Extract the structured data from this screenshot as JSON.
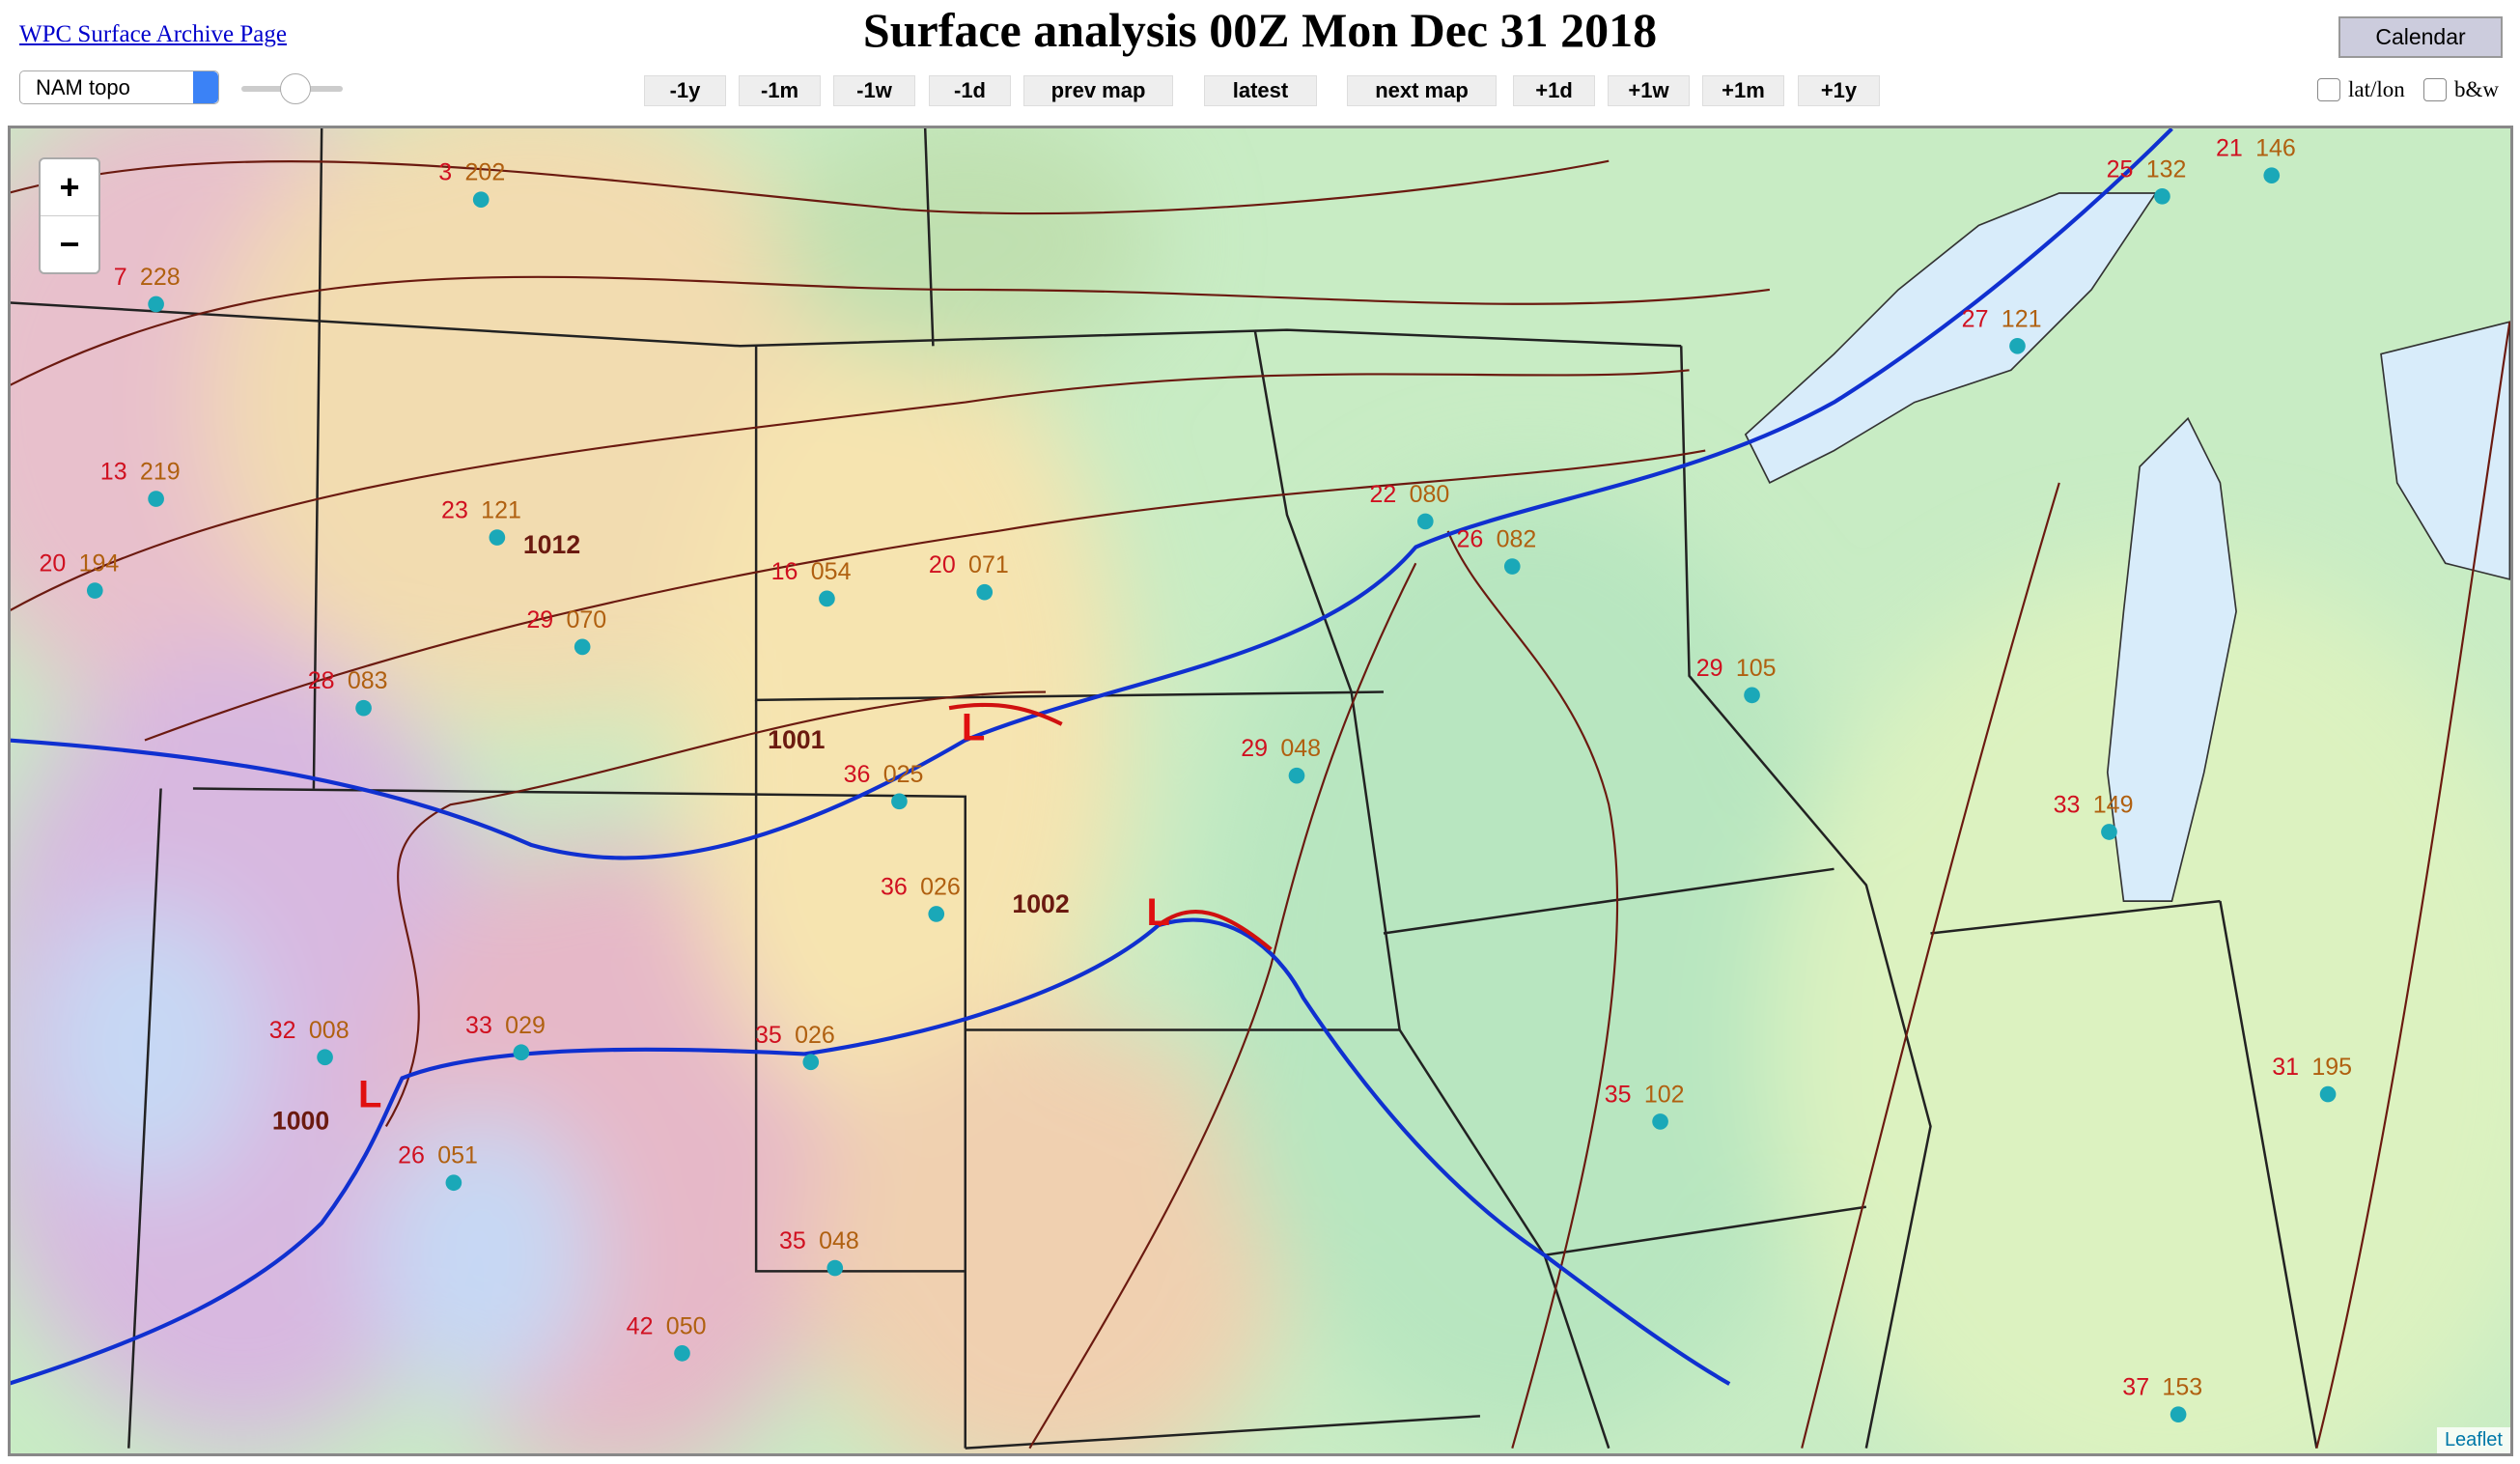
{
  "header": {
    "archive_link": "WPC Surface Archive Page",
    "title": "Surface analysis 00Z Mon Dec 31 2018",
    "calendar": "Calendar",
    "map_select": "NAM topo"
  },
  "nav": {
    "buttons": [
      "-1y",
      "-1m",
      "-1w",
      "-1d",
      "prev map",
      "latest",
      "next map",
      "+1d",
      "+1w",
      "+1m",
      "+1y"
    ]
  },
  "options": {
    "checkboxes": [
      "lat/lon",
      "b&w"
    ]
  },
  "map": {
    "zoom_in": "+",
    "zoom_out": "−",
    "attribution": "Leaflet",
    "lows": [
      "L",
      "L",
      "L"
    ],
    "isobars": [
      "1001",
      "1002",
      "1000",
      "1012"
    ],
    "stations": [
      {
        "temp": "3",
        "pres": "202"
      },
      {
        "temp": "7",
        "pres": "228"
      },
      {
        "temp": "13",
        "pres": "219"
      },
      {
        "temp": "20",
        "pres": "194"
      },
      {
        "temp": "23",
        "pres": "121"
      },
      {
        "temp": "29",
        "pres": "070"
      },
      {
        "temp": "28",
        "pres": "083"
      },
      {
        "temp": "16",
        "pres": "054"
      },
      {
        "temp": "20",
        "pres": "071"
      },
      {
        "temp": "36",
        "pres": "025"
      },
      {
        "temp": "36",
        "pres": "026"
      },
      {
        "temp": "32",
        "pres": "008"
      },
      {
        "temp": "33",
        "pres": "029"
      },
      {
        "temp": "35",
        "pres": "026"
      },
      {
        "temp": "35",
        "pres": "048"
      },
      {
        "temp": "22",
        "pres": "080"
      },
      {
        "temp": "26",
        "pres": "082"
      },
      {
        "temp": "29",
        "pres": "048"
      },
      {
        "temp": "25",
        "pres": "132"
      },
      {
        "temp": "21",
        "pres": "146"
      },
      {
        "temp": "27",
        "pres": "121"
      },
      {
        "temp": "33",
        "pres": "149"
      },
      {
        "temp": "31",
        "pres": "195"
      },
      {
        "temp": "35",
        "pres": "102"
      },
      {
        "temp": "26",
        "pres": "051"
      },
      {
        "temp": "42",
        "pres": "050"
      },
      {
        "temp": "37",
        "pres": "153"
      },
      {
        "temp": "29",
        "pres": "105"
      }
    ]
  }
}
